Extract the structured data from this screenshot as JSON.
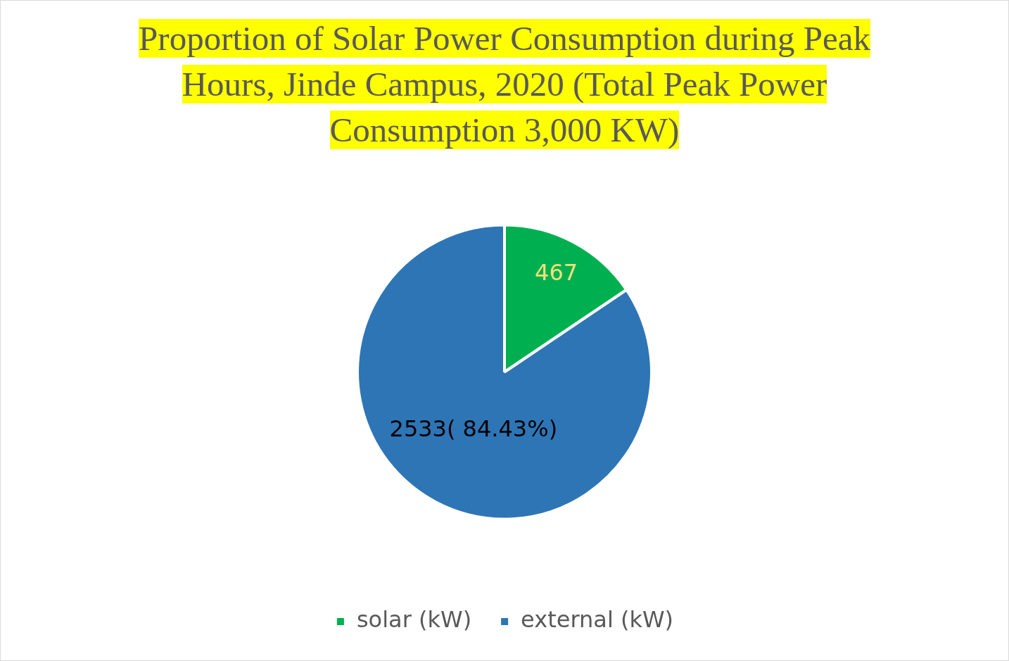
{
  "chart_data": {
    "type": "pie",
    "title": "Proportion of Solar Power Consumption during Peak Hours, Jinde Campus, 2020 (Total Peak Power Consumption 3,000 KW)",
    "categories": [
      "solar (kW)",
      "external (kW)"
    ],
    "values": [
      467,
      2533
    ],
    "value_labels": [
      "467",
      "2533( 84.43%)"
    ],
    "colors": [
      "#00b050",
      "#2e75b6"
    ],
    "data_labels": true,
    "legend": "bottom"
  }
}
